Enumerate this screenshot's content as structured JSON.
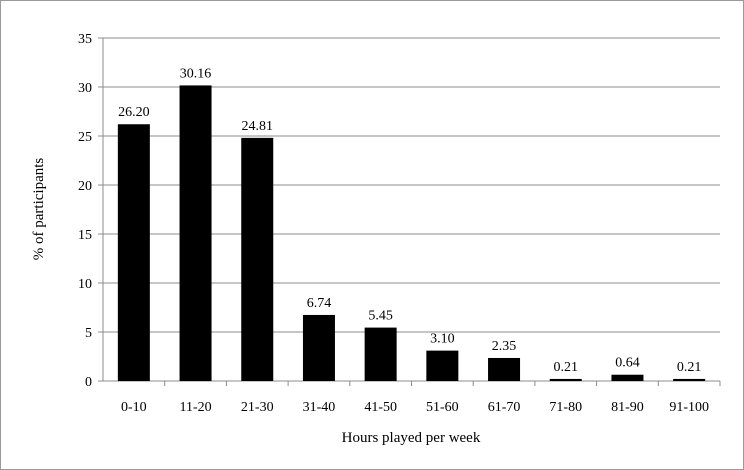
{
  "chart_data": {
    "type": "bar",
    "title": "",
    "xlabel": "Hours played per week",
    "ylabel": "% of participants",
    "categories": [
      "0-10",
      "11-20",
      "21-30",
      "31-40",
      "41-50",
      "51-60",
      "61-70",
      "71-80",
      "81-90",
      "91-100"
    ],
    "values": [
      26.2,
      30.16,
      24.81,
      6.74,
      5.45,
      3.1,
      2.35,
      0.21,
      0.64,
      0.21
    ],
    "value_labels": [
      "26.20",
      "30.16",
      "24.81",
      "6.74",
      "5.45",
      "3.10",
      "2.35",
      "0.21",
      "0.64",
      "0.21"
    ],
    "ylim": [
      0,
      35
    ],
    "yticks": [
      0,
      5,
      10,
      15,
      20,
      25,
      30,
      35
    ],
    "grid": true,
    "legend": "none",
    "colors": {
      "bar": "#000000",
      "grid": "#8c8c8c",
      "axis": "#8c8c8c",
      "frame": "#9a9a9a"
    }
  }
}
